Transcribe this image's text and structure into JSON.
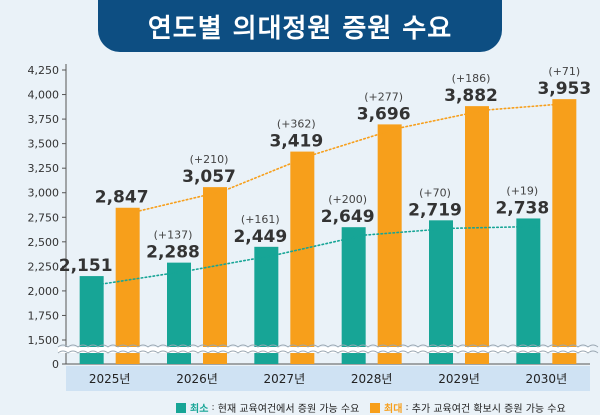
{
  "title": "연도별 의대정원 증원 수요",
  "colors": {
    "background": "#eaf2f8",
    "title_bg": "#0d4e82",
    "min_bar": "#17a596",
    "max_bar": "#f79f1b",
    "highlight_text": "#c8102e",
    "year_band": "#cfe2f3"
  },
  "legend": {
    "min": {
      "name": "최소",
      "sep": ":",
      "desc": "현재 교육여건에서 증원 가능 수요"
    },
    "max": {
      "name": "최대",
      "sep": ":",
      "desc": "추가 교육여건 확보시 증원 가능 수요"
    }
  },
  "chart_data": {
    "type": "bar",
    "title": "연도별 의대정원 증원 수요",
    "categories": [
      "2025년",
      "2026년",
      "2027년",
      "2028년",
      "2029년",
      "2030년"
    ],
    "series": [
      {
        "name": "최소",
        "values": [
          2151,
          2288,
          2449,
          2649,
          2719,
          2738
        ],
        "labels": [
          "2,151",
          "2,288",
          "2,449",
          "2,649",
          "2,719",
          "2,738"
        ],
        "deltas": [
          "",
          "(+137)",
          "(+161)",
          "(+200)",
          "(+70)",
          "(+19)"
        ]
      },
      {
        "name": "최대",
        "values": [
          2847,
          3057,
          3419,
          3696,
          3882,
          3953
        ],
        "labels": [
          "2,847",
          "3,057",
          "3,419",
          "3,696",
          "3,882",
          "3,953"
        ],
        "deltas": [
          "",
          "(+210)",
          "(+362)",
          "(+277)",
          "(+186)",
          "(+71)"
        ]
      }
    ],
    "ylim": [
      1500,
      4250
    ],
    "yticks": [
      1500,
      1750,
      2000,
      2250,
      2500,
      2750,
      3000,
      3250,
      3500,
      3750,
      4000,
      4250
    ],
    "ytick_labels": [
      "1,500",
      "1,750",
      "2,000",
      "2,250",
      "2,500",
      "2,750",
      "3,000",
      "3,250",
      "3,500",
      "3,750",
      "4,000",
      "4,250"
    ],
    "zero_label": "0",
    "axis_break": true,
    "trendlines": true,
    "grid": false
  }
}
